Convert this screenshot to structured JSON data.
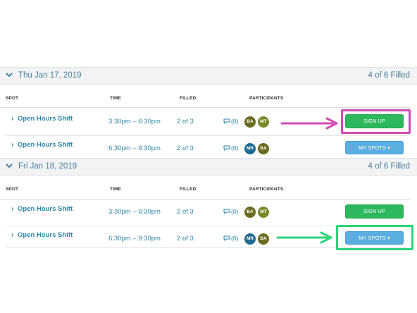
{
  "days": [
    {
      "date": "Thu Jan 17, 2019",
      "filled_summary": "4 of 6 Filled"
    },
    {
      "date": "Fri Jan 18, 2019",
      "filled_summary": "4 of 6 Filled"
    }
  ],
  "columns": {
    "spot": "SPOT",
    "time": "TIME",
    "filled": "FILLED",
    "participants": "PARTICIPANTS"
  },
  "rows": [
    {
      "spot": "Open Hours Shift",
      "time": "3:30pm – 6:30pm",
      "filled": "2 of 3",
      "comments": "(0)",
      "participants": [
        "BA",
        "MT"
      ],
      "action": "SIGN UP"
    },
    {
      "spot": "Open Hours Shift",
      "time": "6:30pm – 9:30pm",
      "filled": "2 of 3",
      "comments": "(0)",
      "participants": [
        "MR",
        "BA"
      ],
      "action": "MY SPOTS ▾"
    },
    {
      "spot": "Open Hours Shift",
      "time": "3:30pm – 6:30pm",
      "filled": "2 of 3",
      "comments": "(0)",
      "participants": [
        "BA",
        "MT"
      ],
      "action": "SIGN UP"
    },
    {
      "spot": "Open Hours Shift",
      "time": "6:30pm – 9:30pm",
      "filled": "2 of 3",
      "comments": "(0)",
      "participants": [
        "MR",
        "BA"
      ],
      "action": "MY SPOTS ▾"
    }
  ],
  "colors": {
    "avatar_BA": "#6b6b1f",
    "avatar_MT": "#7a8a2a",
    "avatar_MR": "#1f6a94",
    "annotation_magenta": "#d04bb4",
    "annotation_green": "#2bd47a"
  }
}
